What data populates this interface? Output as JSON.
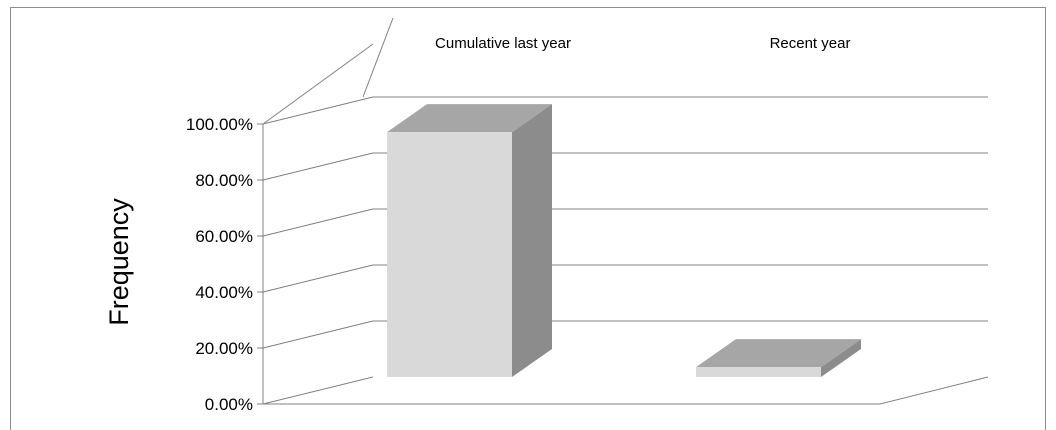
{
  "chart_data": {
    "type": "bar",
    "three_d": true,
    "categories": [
      "Cumulative last year",
      "Recent year"
    ],
    "values": [
      0.9717,
      0.0394
    ],
    "ylabel": "Frequency",
    "ylim": [
      0,
      1
    ],
    "yticks": [
      0,
      0.2,
      0.4,
      0.6,
      0.8,
      1.0
    ],
    "ytick_labels": [
      "0.00%",
      "20.00%",
      "40.00%",
      "60.00%",
      "80.00%",
      "100.00%"
    ],
    "grid": true,
    "legend": "none",
    "colors": {
      "bar_front": "#d9d9d9",
      "bar_top": "#a6a6a6",
      "bar_side": "#8c8c8c",
      "grid": "#808080",
      "frame": "#8c8c8c"
    }
  }
}
